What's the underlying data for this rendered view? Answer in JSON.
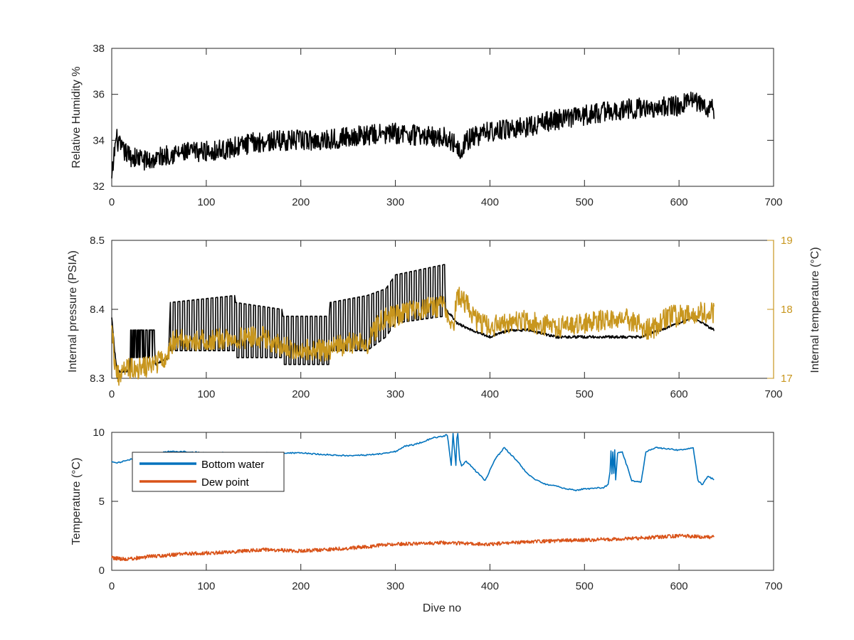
{
  "chart_data": [
    {
      "type": "line",
      "panel": "humidity",
      "xlabel": "",
      "ylabel": "Relative Humidity %",
      "xlim": [
        0,
        700
      ],
      "ylim": [
        32,
        38
      ],
      "xticks": [
        "0",
        "100",
        "200",
        "300",
        "400",
        "500",
        "600",
        "700"
      ],
      "yticks": [
        "32",
        "34",
        "36",
        "38"
      ],
      "series": [
        {
          "color": "#000000",
          "noise": 0.45,
          "x": [
            0,
            3,
            5,
            10,
            20,
            40,
            60,
            90,
            120,
            150,
            180,
            220,
            260,
            300,
            330,
            355,
            370,
            375,
            400,
            440,
            470,
            500,
            530,
            560,
            600,
            610,
            620,
            637
          ],
          "y": [
            32.2,
            33.6,
            34.1,
            33.6,
            33.3,
            33.1,
            33.4,
            33.5,
            33.6,
            33.9,
            34.0,
            34.0,
            34.2,
            34.3,
            34.2,
            34.1,
            33.6,
            34.0,
            34.4,
            34.6,
            34.9,
            35.1,
            35.3,
            35.4,
            35.5,
            35.8,
            35.6,
            35.3
          ]
        }
      ]
    },
    {
      "type": "line",
      "panel": "pressure",
      "xlabel": "",
      "ylabel": "Internal pressure (PSIA)",
      "ylabel_right": "Internal temperature (°C)",
      "xlim": [
        0,
        700
      ],
      "ylim": [
        8.3,
        8.5
      ],
      "ylim_right": [
        17,
        19
      ],
      "xticks": [
        "0",
        "100",
        "200",
        "300",
        "400",
        "500",
        "600",
        "700"
      ],
      "yticks": [
        "8.3",
        "8.4",
        "8.5"
      ],
      "yticks_right": [
        "17",
        "18",
        "19"
      ],
      "colors": {
        "left": "#000000",
        "right": "#c8961e"
      },
      "series": [
        {
          "axis": "left",
          "color": "#000000",
          "oscillation": {
            "x_range": [
              60,
              352
            ],
            "period": 5
          },
          "x": [
            0,
            3,
            6,
            10,
            19,
            20,
            45,
            46,
            60,
            62,
            130,
            131,
            180,
            181,
            230,
            231,
            270,
            290,
            300,
            352,
            353,
            360,
            365,
            380,
            400,
            420,
            440,
            470,
            500,
            540,
            560,
            580,
            600,
            615,
            625,
            637
          ],
          "low": [
            8.39,
            8.34,
            8.31,
            8.31,
            8.31,
            8.33,
            8.33,
            8.32,
            8.33,
            8.34,
            8.34,
            8.33,
            8.33,
            8.32,
            8.32,
            8.34,
            8.34,
            8.36,
            8.38,
            8.39,
            8.4,
            8.39,
            8.38,
            8.37,
            8.36,
            8.37,
            8.37,
            8.36,
            8.36,
            8.36,
            8.36,
            8.37,
            8.38,
            8.39,
            8.38,
            8.37
          ],
          "high": [
            8.39,
            8.34,
            8.31,
            8.31,
            8.31,
            8.37,
            8.37,
            8.32,
            8.33,
            8.41,
            8.42,
            8.41,
            8.4,
            8.39,
            8.39,
            8.41,
            8.42,
            8.43,
            8.45,
            8.465,
            8.4,
            8.39,
            8.38,
            8.37,
            8.36,
            8.37,
            8.37,
            8.36,
            8.36,
            8.36,
            8.36,
            8.37,
            8.38,
            8.39,
            8.38,
            8.37
          ]
        },
        {
          "axis": "right",
          "color": "#c8961e",
          "noise": 0.16,
          "x": [
            0,
            2,
            4,
            8,
            15,
            30,
            45,
            60,
            65,
            100,
            160,
            180,
            222,
            250,
            270,
            285,
            300,
            320,
            350,
            356,
            362,
            365,
            375,
            380,
            390,
            400,
            430,
            470,
            500,
            540,
            570,
            590,
            600,
            610,
            637
          ],
          "y": [
            17.9,
            17.4,
            17.15,
            17.0,
            17.15,
            17.15,
            17.2,
            17.35,
            17.55,
            17.55,
            17.6,
            17.45,
            17.4,
            17.5,
            17.5,
            17.85,
            17.9,
            18.0,
            18.05,
            17.9,
            17.8,
            18.2,
            18.1,
            17.9,
            17.8,
            17.75,
            17.85,
            17.75,
            17.8,
            17.9,
            17.7,
            17.9,
            17.9,
            17.95,
            17.95
          ]
        }
      ]
    },
    {
      "type": "line",
      "panel": "temperature",
      "xlabel": "Dive no",
      "ylabel": "Temperature (°C)",
      "xlim": [
        0,
        700
      ],
      "ylim": [
        0,
        10
      ],
      "xticks": [
        "0",
        "100",
        "200",
        "300",
        "400",
        "500",
        "600",
        "700"
      ],
      "yticks": [
        "0",
        "5",
        "10"
      ],
      "legend": {
        "position": "top-left"
      },
      "series": [
        {
          "name": "Bottom water",
          "color": "#0072bd",
          "noise": 0.05,
          "x": [
            0,
            5,
            10,
            15,
            25,
            40,
            60,
            80,
            100,
            150,
            200,
            250,
            280,
            300,
            310,
            320,
            340,
            355,
            359,
            361,
            364,
            365,
            366,
            368,
            370,
            375,
            385,
            395,
            405,
            415,
            425,
            440,
            450,
            460,
            470,
            480,
            490,
            500,
            520,
            525,
            527,
            528,
            529,
            530,
            531,
            532,
            533,
            535,
            540,
            550,
            560,
            565,
            575,
            600,
            610,
            615,
            620,
            625,
            630,
            637
          ],
          "y": [
            7.9,
            7.8,
            7.8,
            8.0,
            8.1,
            8.4,
            8.6,
            8.6,
            8.5,
            8.5,
            8.5,
            8.3,
            8.4,
            8.6,
            9.0,
            9.1,
            9.6,
            9.8,
            7.6,
            9.9,
            7.6,
            9.6,
            9.9,
            8.0,
            7.6,
            7.9,
            7.2,
            6.5,
            8.0,
            8.9,
            8.2,
            7.0,
            6.5,
            6.2,
            6.1,
            5.9,
            5.8,
            5.9,
            6.0,
            6.2,
            7.2,
            8.7,
            7.0,
            8.6,
            7.0,
            8.7,
            6.6,
            8.5,
            8.6,
            6.5,
            6.4,
            8.6,
            8.9,
            8.7,
            8.8,
            8.9,
            6.5,
            6.2,
            6.8,
            6.6
          ]
        },
        {
          "name": "Dew point",
          "color": "#d95319",
          "noise": 0.13,
          "x": [
            0,
            15,
            40,
            80,
            120,
            160,
            200,
            250,
            300,
            350,
            400,
            450,
            500,
            550,
            600,
            637
          ],
          "y": [
            0.9,
            0.8,
            1.0,
            1.2,
            1.3,
            1.5,
            1.4,
            1.6,
            1.9,
            2.0,
            1.9,
            2.1,
            2.2,
            2.3,
            2.5,
            2.4
          ]
        }
      ]
    }
  ]
}
